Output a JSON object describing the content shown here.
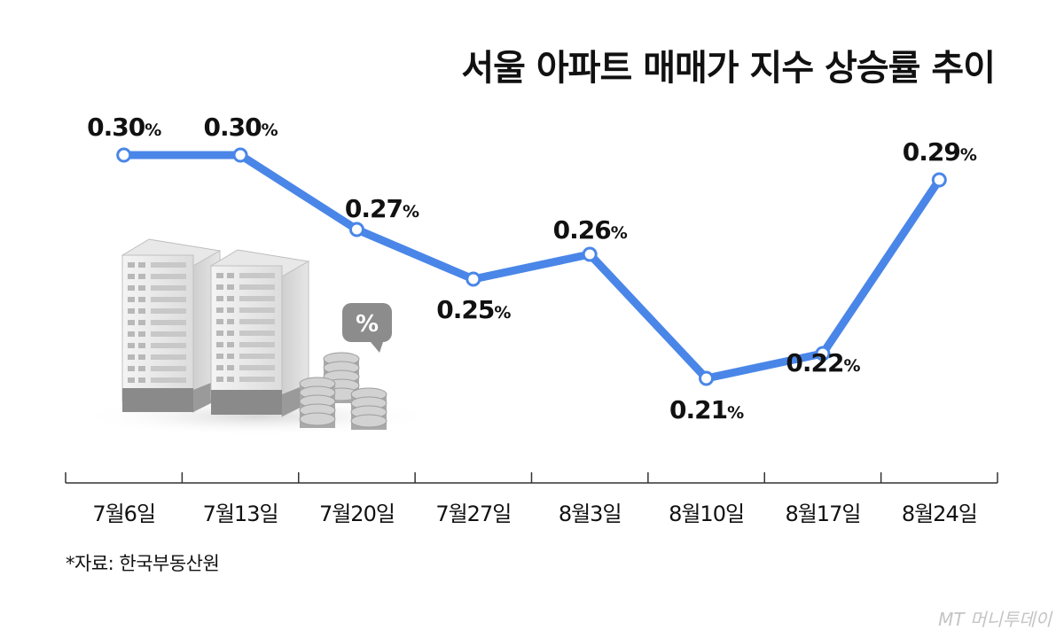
{
  "chart_data": {
    "type": "line",
    "title": "서울 아파트 매매가 지수 상승률 추이",
    "categories": [
      "7월6일",
      "7월13일",
      "7월20일",
      "7월27일",
      "8월3일",
      "8월10일",
      "8월17일",
      "8월24일"
    ],
    "series": [
      {
        "values": [
          0.3,
          0.3,
          0.27,
          0.25,
          0.26,
          0.21,
          0.22,
          0.29
        ]
      }
    ],
    "value_unit": "%",
    "data_labels": [
      "0.30",
      "0.30",
      "0.27",
      "0.25",
      "0.26",
      "0.21",
      "0.22",
      "0.29"
    ],
    "line_color": "#4a86e8",
    "grid": false,
    "legend": "none"
  },
  "source_note": "*자료: 한국부동산원",
  "watermark": "MT 머니투데이"
}
